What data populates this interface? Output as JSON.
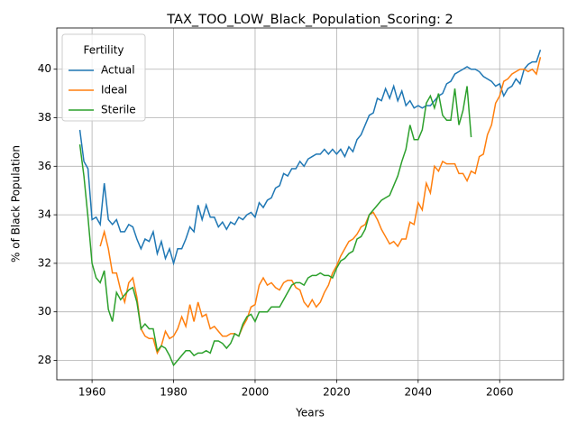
{
  "chart_data": {
    "type": "line",
    "title": "TAX_TOO_LOW_Black_Population_Scoring: 2",
    "xlabel": "Years",
    "ylabel": "% of Black Population",
    "legend_title": "Fertility",
    "legend_loc": "upper left",
    "grid": true,
    "xlim": [
      1951.35,
      2075.65
    ],
    "ylim": [
      27.2,
      41.7
    ],
    "xticks": [
      1960,
      1980,
      2000,
      2020,
      2040,
      2060
    ],
    "yticks": [
      28,
      30,
      32,
      34,
      36,
      38,
      40
    ],
    "x": [
      1957,
      1958,
      1959,
      1960,
      1961,
      1962,
      1963,
      1964,
      1965,
      1966,
      1967,
      1968,
      1969,
      1970,
      1971,
      1972,
      1973,
      1974,
      1975,
      1976,
      1977,
      1978,
      1979,
      1980,
      1981,
      1982,
      1983,
      1984,
      1985,
      1986,
      1987,
      1988,
      1989,
      1990,
      1991,
      1992,
      1993,
      1994,
      1995,
      1996,
      1997,
      1998,
      1999,
      2000,
      2001,
      2002,
      2003,
      2004,
      2005,
      2006,
      2007,
      2008,
      2009,
      2010,
      2011,
      2012,
      2013,
      2014,
      2015,
      2016,
      2017,
      2018,
      2019,
      2020,
      2021,
      2022,
      2023,
      2024,
      2025,
      2026,
      2027,
      2028,
      2029,
      2030,
      2031,
      2032,
      2033,
      2034,
      2035,
      2036,
      2037,
      2038,
      2039,
      2040,
      2041,
      2042,
      2043,
      2044,
      2045,
      2046,
      2047,
      2048,
      2049,
      2050,
      2051,
      2052,
      2053,
      2054,
      2055,
      2056,
      2057,
      2058,
      2059,
      2060,
      2061,
      2062,
      2063,
      2064,
      2065,
      2066,
      2067,
      2068,
      2069,
      2070
    ],
    "series": [
      {
        "name": "Actual",
        "color": "#1f77b4",
        "values": [
          37.5,
          36.2,
          35.9,
          33.8,
          33.9,
          33.6,
          35.3,
          33.8,
          33.6,
          33.8,
          33.3,
          33.3,
          33.6,
          33.5,
          33.0,
          32.6,
          33.0,
          32.9,
          33.3,
          32.4,
          32.9,
          32.2,
          32.6,
          32.0,
          32.6,
          32.6,
          33.0,
          33.5,
          33.3,
          34.4,
          33.8,
          34.4,
          33.9,
          33.9,
          33.5,
          33.7,
          33.4,
          33.7,
          33.6,
          33.9,
          33.8,
          34.0,
          34.1,
          33.9,
          34.5,
          34.3,
          34.6,
          34.7,
          35.1,
          35.2,
          35.7,
          35.6,
          35.9,
          35.9,
          36.2,
          36.0,
          36.3,
          36.4,
          36.5,
          36.5,
          36.7,
          36.5,
          36.7,
          36.5,
          36.7,
          36.4,
          36.8,
          36.6,
          37.1,
          37.3,
          37.7,
          38.1,
          38.2,
          38.8,
          38.7,
          39.2,
          38.8,
          39.3,
          38.7,
          39.1,
          38.5,
          38.7,
          38.4,
          38.5,
          38.4,
          38.5,
          38.5,
          38.7,
          38.9,
          39.0,
          39.4,
          39.5,
          39.8,
          39.9,
          40.0,
          40.1,
          40.0,
          40.0,
          39.9,
          39.7,
          39.6,
          39.5,
          39.3,
          39.4,
          38.9,
          39.2,
          39.3,
          39.6,
          39.4,
          40.0,
          40.2,
          40.3,
          40.3,
          40.8
        ]
      },
      {
        "name": "Ideal",
        "color": "#ff7f0e",
        "values": [
          null,
          null,
          null,
          null,
          null,
          32.7,
          33.3,
          32.6,
          31.6,
          31.6,
          30.9,
          30.4,
          31.2,
          31.4,
          30.6,
          29.3,
          29.0,
          28.9,
          28.9,
          28.3,
          28.6,
          29.2,
          28.9,
          29.0,
          29.3,
          29.8,
          29.4,
          30.3,
          29.6,
          30.4,
          29.8,
          29.9,
          29.3,
          29.4,
          29.2,
          29.0,
          29.0,
          29.1,
          29.1,
          29.0,
          29.4,
          29.7,
          30.2,
          30.3,
          31.1,
          31.4,
          31.1,
          31.2,
          31.0,
          30.9,
          31.2,
          31.3,
          31.3,
          31.0,
          30.9,
          30.4,
          30.2,
          30.5,
          30.2,
          30.4,
          30.8,
          31.1,
          31.6,
          31.9,
          32.3,
          32.6,
          32.9,
          33.0,
          33.2,
          33.5,
          33.6,
          34.0,
          34.1,
          33.8,
          33.4,
          33.1,
          32.8,
          32.9,
          32.7,
          33.0,
          33.0,
          33.7,
          33.6,
          34.5,
          34.2,
          35.3,
          34.9,
          36.0,
          35.8,
          36.2,
          36.1,
          36.1,
          36.1,
          35.7,
          35.7,
          35.4,
          35.8,
          35.7,
          36.4,
          36.5,
          37.3,
          37.7,
          38.6,
          38.9,
          39.5,
          39.6,
          39.8,
          39.9,
          40.0,
          40.0,
          39.9,
          40.0,
          39.8,
          40.5
        ]
      },
      {
        "name": "Sterile",
        "color": "#2ca02c",
        "values": [
          36.9,
          35.6,
          33.9,
          32.0,
          31.4,
          31.2,
          31.7,
          30.1,
          29.6,
          30.8,
          30.5,
          30.7,
          30.9,
          31.0,
          30.4,
          29.3,
          29.5,
          29.3,
          29.3,
          28.4,
          28.6,
          28.5,
          28.2,
          27.8,
          28.0,
          28.2,
          28.4,
          28.4,
          28.2,
          28.3,
          28.3,
          28.4,
          28.3,
          28.8,
          28.8,
          28.7,
          28.5,
          28.7,
          29.1,
          29.0,
          29.5,
          29.8,
          29.9,
          29.6,
          30.0,
          30.0,
          30.0,
          30.2,
          30.2,
          30.2,
          30.5,
          30.8,
          31.1,
          31.2,
          31.2,
          31.1,
          31.4,
          31.5,
          31.5,
          31.6,
          31.5,
          31.5,
          31.4,
          31.8,
          32.1,
          32.2,
          32.4,
          32.5,
          33.0,
          33.1,
          33.4,
          34.0,
          34.2,
          34.4,
          34.6,
          34.7,
          34.8,
          35.2,
          35.6,
          36.2,
          36.7,
          37.7,
          37.1,
          37.1,
          37.5,
          38.6,
          38.9,
          38.4,
          39.0,
          38.1,
          37.9,
          37.9,
          39.2,
          37.7,
          38.3,
          39.3,
          37.2,
          null,
          null,
          null,
          null,
          null,
          null,
          null,
          null,
          null,
          null,
          null,
          null,
          null,
          null,
          null,
          null,
          null
        ]
      }
    ]
  }
}
